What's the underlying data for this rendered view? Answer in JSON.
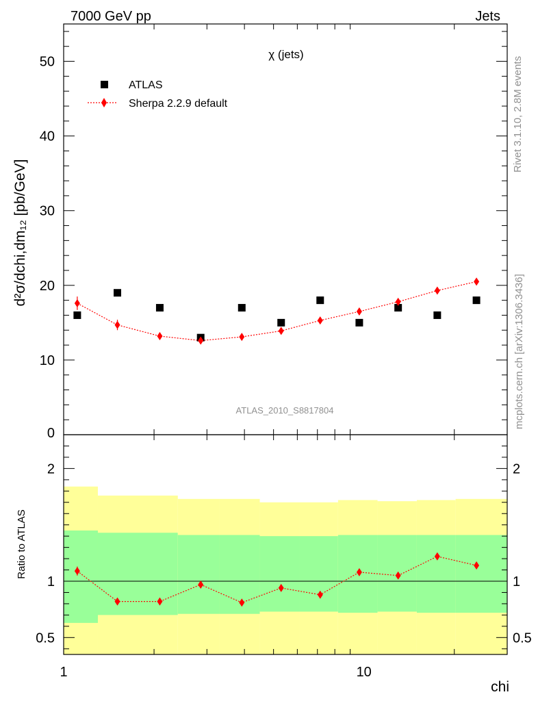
{
  "header": {
    "left": "7000 GeV pp",
    "right": "Jets"
  },
  "side_labels": {
    "rivet": "Rivet 3.1.10,  2.8M events",
    "mcplots": "mcplots.cern.ch [arXiv:1306.3436]"
  },
  "chart_data": [
    {
      "type": "scatter",
      "title": "χ (jets)",
      "ylabel": "d²σ/dchi,dm₁₂ [pb/GeV]",
      "xlabel": "chi",
      "x_scale": "log",
      "xlim": [
        1,
        30
      ],
      "ylim": [
        0,
        55
      ],
      "yticks": [
        10,
        20,
        30,
        40,
        50
      ],
      "ytick_labels": [
        "10",
        "20",
        "30",
        "40",
        "50"
      ],
      "ytick_zero_label": "0",
      "watermark": "ATLAS_2010_S8817804",
      "legend_position": "top-left",
      "x": [
        1.11,
        1.51,
        2.09,
        2.86,
        3.92,
        5.3,
        7.15,
        9.65,
        13.0,
        17.55,
        23.7
      ],
      "series": [
        {
          "name": "ATLAS",
          "color": "#000000",
          "marker": "square",
          "values": [
            16,
            19,
            17,
            13,
            17,
            15,
            18,
            15,
            17,
            16,
            18
          ]
        },
        {
          "name": "Sherpa 2.2.9 default",
          "color": "#ff0000",
          "marker": "diamond",
          "line": "dotted",
          "values": [
            17.6,
            14.7,
            13.2,
            12.6,
            13.1,
            13.9,
            15.3,
            16.5,
            17.8,
            19.3,
            20.5
          ],
          "errors": [
            0.9,
            0.7,
            0.5,
            0.4,
            0.4,
            0.3,
            0.3,
            0.3,
            0.3,
            0.3,
            0.3
          ]
        }
      ]
    },
    {
      "type": "scatter",
      "ylabel": "Ratio to ATLAS",
      "xlabel": "chi",
      "x_scale": "log",
      "xlim": [
        1,
        30
      ],
      "ylim": [
        0.35,
        2.3
      ],
      "yticks": [
        0.5,
        1,
        2
      ],
      "ytick_labels": [
        "0.5",
        "1",
        "2"
      ],
      "xticks": [
        1,
        10
      ],
      "xtick_labels": [
        "1",
        "10"
      ],
      "bands": {
        "bin_edges": [
          1.0,
          1.3,
          1.8,
          2.4,
          3.3,
          4.5,
          6.1,
          8.2,
          11.1,
          15.0,
          20.2,
          30.0
        ],
        "outer_color": "#ffff99",
        "inner_color": "#99ff99",
        "outer_lo": [
          0.35,
          0.35,
          0.35,
          0.35,
          0.35,
          0.35,
          0.35,
          0.35,
          0.35,
          0.35,
          0.35
        ],
        "outer_hi": [
          1.84,
          1.76,
          1.76,
          1.73,
          1.73,
          1.7,
          1.7,
          1.72,
          1.71,
          1.72,
          1.73
        ],
        "inner_lo": [
          0.63,
          0.7,
          0.7,
          0.71,
          0.71,
          0.73,
          0.73,
          0.72,
          0.73,
          0.72,
          0.72
        ],
        "inner_hi": [
          1.45,
          1.43,
          1.43,
          1.41,
          1.41,
          1.4,
          1.4,
          1.41,
          1.41,
          1.41,
          1.41
        ]
      },
      "x": [
        1.11,
        1.51,
        2.09,
        2.86,
        3.92,
        5.3,
        7.15,
        9.65,
        13.0,
        17.55,
        23.7
      ],
      "series": [
        {
          "name": "Sherpa 2.2.9 default",
          "color": "#ff0000",
          "marker": "diamond",
          "line": "dotted",
          "values": [
            1.09,
            0.82,
            0.82,
            0.97,
            0.81,
            0.94,
            0.88,
            1.08,
            1.05,
            1.22,
            1.14
          ],
          "errors": [
            0.04,
            0.03,
            0.02,
            0.02,
            0.02,
            0.01,
            0.01,
            0.01,
            0.01,
            0.01,
            0.01
          ]
        }
      ]
    }
  ]
}
